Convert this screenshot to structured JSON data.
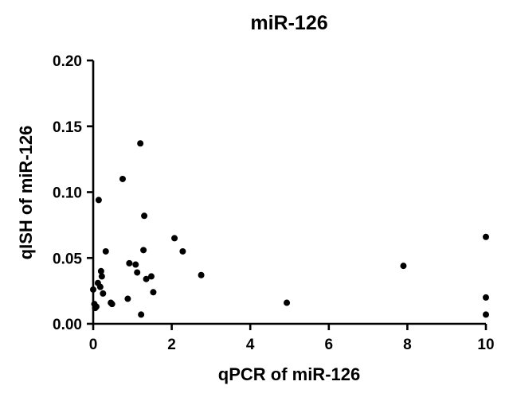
{
  "chart_data": {
    "type": "scatter",
    "title": "miR-126",
    "xlabel": "qPCR of miR-126",
    "ylabel": "qISH of miR-126",
    "xlim": [
      0,
      10
    ],
    "ylim": [
      0,
      0.2
    ],
    "x_ticks": [
      0,
      2,
      4,
      6,
      8,
      10
    ],
    "y_ticks": [
      0.0,
      0.05,
      0.1,
      0.15,
      0.2
    ],
    "x_tick_labels": [
      "0",
      "2",
      "4",
      "6",
      "8",
      "10"
    ],
    "y_tick_labels": [
      "0.00",
      "0.05",
      "0.10",
      "0.15",
      "0.20"
    ],
    "grid": false,
    "legend": "none",
    "marker_color": "#000000",
    "series": [
      {
        "points": [
          {
            "x": 0.0,
            "y": 0.026
          },
          {
            "x": 0.03,
            "y": 0.015
          },
          {
            "x": 0.05,
            "y": 0.012
          },
          {
            "x": 0.08,
            "y": 0.013
          },
          {
            "x": 0.12,
            "y": 0.031
          },
          {
            "x": 0.14,
            "y": 0.094
          },
          {
            "x": 0.18,
            "y": 0.028
          },
          {
            "x": 0.2,
            "y": 0.04
          },
          {
            "x": 0.22,
            "y": 0.036
          },
          {
            "x": 0.25,
            "y": 0.023
          },
          {
            "x": 0.32,
            "y": 0.055
          },
          {
            "x": 0.45,
            "y": 0.016
          },
          {
            "x": 0.48,
            "y": 0.015
          },
          {
            "x": 0.75,
            "y": 0.11
          },
          {
            "x": 0.88,
            "y": 0.019
          },
          {
            "x": 0.92,
            "y": 0.046
          },
          {
            "x": 1.08,
            "y": 0.045
          },
          {
            "x": 1.12,
            "y": 0.039
          },
          {
            "x": 1.2,
            "y": 0.137
          },
          {
            "x": 1.22,
            "y": 0.007
          },
          {
            "x": 1.28,
            "y": 0.056
          },
          {
            "x": 1.3,
            "y": 0.082
          },
          {
            "x": 1.35,
            "y": 0.034
          },
          {
            "x": 1.48,
            "y": 0.036
          },
          {
            "x": 1.53,
            "y": 0.024
          },
          {
            "x": 2.07,
            "y": 0.065
          },
          {
            "x": 2.28,
            "y": 0.055
          },
          {
            "x": 2.75,
            "y": 0.037
          },
          {
            "x": 4.93,
            "y": 0.016
          },
          {
            "x": 7.9,
            "y": 0.044
          },
          {
            "x": 10.0,
            "y": 0.066
          },
          {
            "x": 10.0,
            "y": 0.02
          },
          {
            "x": 10.0,
            "y": 0.007
          }
        ]
      }
    ]
  }
}
